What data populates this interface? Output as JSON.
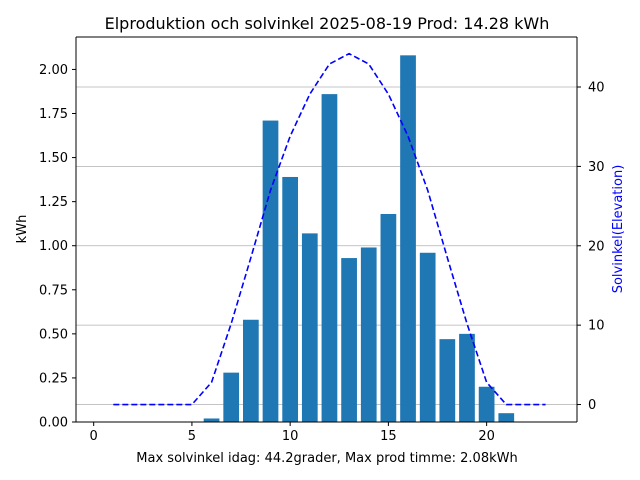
{
  "chart_data": {
    "type": "bar",
    "title": "Elproduktion och solvinkel 2025-08-19 Prod: 14.28 kWh",
    "xlabel": "Max solvinkel idag: 44.2grader, Max prod timme: 2.08kWh",
    "ylabel": "kWh",
    "ylabel_right": "Solvinkel(Elevation)",
    "xlim": [
      -0.9,
      24.6
    ],
    "ylim": [
      0,
      2.184
    ],
    "ylim_right": [
      -2.2,
      46.3
    ],
    "x_ticks": [
      0,
      5,
      10,
      15,
      20
    ],
    "x_tick_labels": [
      "0",
      "5",
      "10",
      "15",
      "20"
    ],
    "y_ticks": [
      0,
      0.25,
      0.5,
      0.75,
      1.0,
      1.25,
      1.5,
      1.75,
      2.0
    ],
    "y_tick_labels": [
      "0.00",
      "0.25",
      "0.50",
      "0.75",
      "1.00",
      "1.25",
      "1.50",
      "1.75",
      "2.00"
    ],
    "y_right_ticks": [
      0,
      10,
      20,
      30,
      40
    ],
    "y_right_tick_labels": [
      "0",
      "10",
      "20",
      "30",
      "40"
    ],
    "grid": "horizontal lines at right-axis ticks",
    "series": [
      {
        "kind": "bar",
        "color": "#1f77b4",
        "x": [
          6,
          7,
          8,
          9,
          10,
          11,
          12,
          13,
          14,
          15,
          16,
          17,
          18,
          19,
          20,
          21
        ],
        "values": [
          0.02,
          0.28,
          0.58,
          1.71,
          1.39,
          1.07,
          1.86,
          0.93,
          0.99,
          1.18,
          2.08,
          0.96,
          0.47,
          0.5,
          0.2,
          0.05
        ]
      },
      {
        "kind": "line",
        "axis": "right",
        "color": "#0000ff",
        "dash": "dashed",
        "x": [
          1,
          2,
          3,
          4,
          5,
          6,
          7,
          8,
          9,
          10,
          11,
          12,
          13,
          14,
          15,
          16,
          17,
          18,
          19,
          20,
          21,
          22,
          23
        ],
        "values": [
          0,
          0,
          0,
          0,
          0,
          2.8,
          10.2,
          18.5,
          27.0,
          33.8,
          39.1,
          42.9,
          44.2,
          42.9,
          39.1,
          33.8,
          27.0,
          18.5,
          10.2,
          2.8,
          0,
          0,
          0
        ]
      }
    ]
  }
}
